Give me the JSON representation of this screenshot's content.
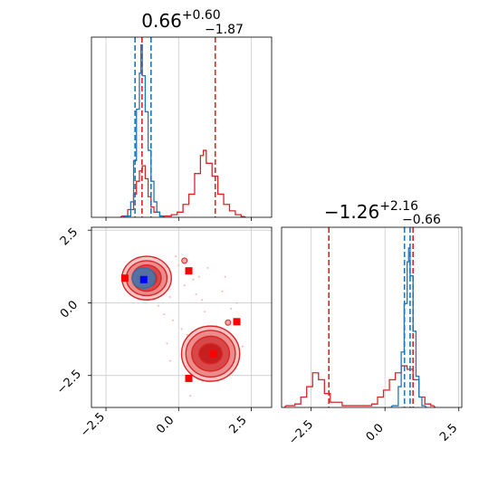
{
  "chart_data": {
    "type": "corner",
    "colors": {
      "series_a": "#d62728",
      "series_b": "#1f77b4",
      "marker_b": "#0000ff",
      "marker_a": "#ff0000",
      "grid": "#cccccc"
    },
    "panels": {
      "hist_x": {
        "title": {
          "main": "0.66",
          "sup": "+0.60",
          "sub": "−1.87"
        },
        "xlim": [
          -3.0,
          3.2
        ],
        "grid": true,
        "series": [
          {
            "type": "step",
            "color": "#d62728",
            "bins": [
              [
                -1.9,
                0.05
              ],
              [
                -1.7,
                0.3
              ],
              [
                -1.5,
                0.9
              ],
              [
                -1.4,
                1.4
              ],
              [
                -1.3,
                1.8
              ],
              [
                -1.2,
                2.0
              ],
              [
                -1.1,
                1.5
              ],
              [
                -1.0,
                0.8
              ],
              [
                -0.9,
                0.4
              ],
              [
                -0.8,
                0.2
              ],
              [
                -0.6,
                0.05
              ],
              [
                -0.4,
                0.05
              ],
              [
                -0.2,
                0.1
              ],
              [
                0.0,
                0.2
              ],
              [
                0.2,
                0.5
              ],
              [
                0.4,
                0.9
              ],
              [
                0.6,
                1.7
              ],
              [
                0.8,
                2.4
              ],
              [
                0.9,
                2.6
              ],
              [
                1.0,
                2.1
              ],
              [
                1.2,
                1.6
              ],
              [
                1.4,
                0.9
              ],
              [
                1.6,
                0.5
              ],
              [
                1.8,
                0.25
              ],
              [
                2.0,
                0.1
              ],
              [
                2.2,
                0.03
              ]
            ],
            "vlines": [
              -1.26,
              1.26
            ]
          },
          {
            "type": "step",
            "color": "#1f77b4",
            "bins": [
              [
                -1.8,
                0.05
              ],
              [
                -1.6,
                0.6
              ],
              [
                -1.5,
                2.2
              ],
              [
                -1.4,
                4.2
              ],
              [
                -1.3,
                5.6
              ],
              [
                -1.25,
                6.7
              ],
              [
                -1.2,
                5.5
              ],
              [
                -1.1,
                4.1
              ],
              [
                -1.0,
                2.6
              ],
              [
                -0.9,
                1.4
              ],
              [
                -0.8,
                0.6
              ],
              [
                -0.7,
                0.2
              ],
              [
                -0.6,
                0.05
              ]
            ],
            "vlines": [
              -1.5,
              -0.95
            ]
          }
        ],
        "ymax": 7.0
      },
      "hist_y": {
        "title": {
          "main": "−1.26",
          "sup": "+2.16",
          "sub": "−0.66"
        },
        "xlim": [
          -3.5,
          2.6
        ],
        "xticks": [
          "−2.5",
          "0.0",
          "2.5"
        ],
        "xtick_values": [
          -2.5,
          0.0,
          2.5
        ],
        "grid": true,
        "series": [
          {
            "type": "step",
            "color": "#d62728",
            "bins": [
              [
                -3.3,
                0.05
              ],
              [
                -3.0,
                0.1
              ],
              [
                -2.8,
                0.3
              ],
              [
                -2.6,
                0.6
              ],
              [
                -2.4,
                1.0
              ],
              [
                -2.2,
                0.8
              ],
              [
                -2.0,
                0.4
              ],
              [
                -1.8,
                0.15
              ],
              [
                -1.4,
                0.05
              ],
              [
                -0.8,
                0.05
              ],
              [
                -0.4,
                0.1
              ],
              [
                -0.2,
                0.3
              ],
              [
                0.0,
                0.5
              ],
              [
                0.2,
                0.8
              ],
              [
                0.4,
                1.0
              ],
              [
                0.6,
                1.2
              ],
              [
                0.8,
                1.1
              ],
              [
                1.0,
                0.8
              ],
              [
                1.2,
                0.3
              ],
              [
                1.4,
                0.1
              ],
              [
                1.6,
                0.05
              ]
            ],
            "vlines": [
              -1.9,
              0.95
            ]
          },
          {
            "type": "step",
            "color": "#1f77b4",
            "bins": [
              [
                0.3,
                0.05
              ],
              [
                0.5,
                0.6
              ],
              [
                0.6,
                1.6
              ],
              [
                0.7,
                3.0
              ],
              [
                0.8,
                4.2
              ],
              [
                0.85,
                4.6
              ],
              [
                0.9,
                3.8
              ],
              [
                1.0,
                2.2
              ],
              [
                1.1,
                0.9
              ],
              [
                1.2,
                0.3
              ],
              [
                1.3,
                0.05
              ]
            ],
            "vlines": [
              0.66,
              0.85
            ]
          }
        ],
        "ymax": 5.2
      },
      "scatter_xy": {
        "xlim": [
          -3.0,
          3.2
        ],
        "ylim": [
          -3.6,
          2.6
        ],
        "xticks": [
          "−2.5",
          "0.0",
          "2.5"
        ],
        "xtick_values": [
          -2.5,
          0.0,
          2.5
        ],
        "yticks": [
          "−2.5",
          "0.0",
          "2.5"
        ],
        "ytick_values": [
          -2.5,
          0.0,
          2.5
        ],
        "grid": true,
        "contours": [
          {
            "center": [
              -1.1,
              0.85
            ],
            "radii": [
              [
                0.85,
                0.75
              ],
              [
                0.7,
                0.6
              ],
              [
                0.5,
                0.45
              ],
              [
                0.35,
                0.3
              ]
            ],
            "fill": [
              "#f7c5c5",
              "#ec8b8b",
              "#d94848",
              "#c51f1f"
            ]
          },
          {
            "center": [
              1.1,
              -1.75
            ],
            "radii": [
              [
                1.0,
                0.95
              ],
              [
                0.85,
                0.8
              ],
              [
                0.65,
                0.6
              ],
              [
                0.4,
                0.35
              ]
            ],
            "fill": [
              "#f7c5c5",
              "#ec8b8b",
              "#d94848",
              "#c51f1f"
            ]
          }
        ],
        "blue_blob": {
          "center": [
            -1.2,
            0.85
          ],
          "radii": [
            0.4,
            0.35
          ]
        },
        "markers_red": [
          [
            -1.85,
            0.85
          ],
          [
            0.35,
            1.1
          ],
          [
            2.0,
            -0.65
          ],
          [
            0.35,
            -2.6
          ],
          [
            1.2,
            -1.75
          ]
        ],
        "markers_blue": [
          [
            -1.2,
            0.8
          ]
        ],
        "scatter_points": [
          [
            0.0,
            1.3
          ],
          [
            0.5,
            0.8
          ],
          [
            0.6,
            0.3
          ],
          [
            0.8,
            0.1
          ],
          [
            0.2,
            0.6
          ],
          [
            -0.3,
            0.2
          ],
          [
            -0.1,
            1.6
          ],
          [
            0.9,
            -0.3
          ],
          [
            1.5,
            0.4
          ],
          [
            1.8,
            -0.2
          ],
          [
            2.2,
            -1.5
          ],
          [
            0.4,
            -3.2
          ],
          [
            -0.7,
            -0.1
          ],
          [
            -0.5,
            -0.4
          ],
          [
            1.0,
            1.2
          ],
          [
            0.7,
            0.9
          ],
          [
            -0.2,
            -0.6
          ],
          [
            2.0,
            0.0
          ],
          [
            0.1,
            -0.9
          ],
          [
            1.3,
            -0.8
          ],
          [
            -0.4,
            -1.4
          ],
          [
            -0.3,
            -2.0
          ],
          [
            0.3,
            -1.1
          ],
          [
            1.6,
            0.9
          ]
        ],
        "satellites": [
          [
            0.2,
            1.45
          ],
          [
            1.7,
            -0.68
          ]
        ]
      }
    }
  }
}
